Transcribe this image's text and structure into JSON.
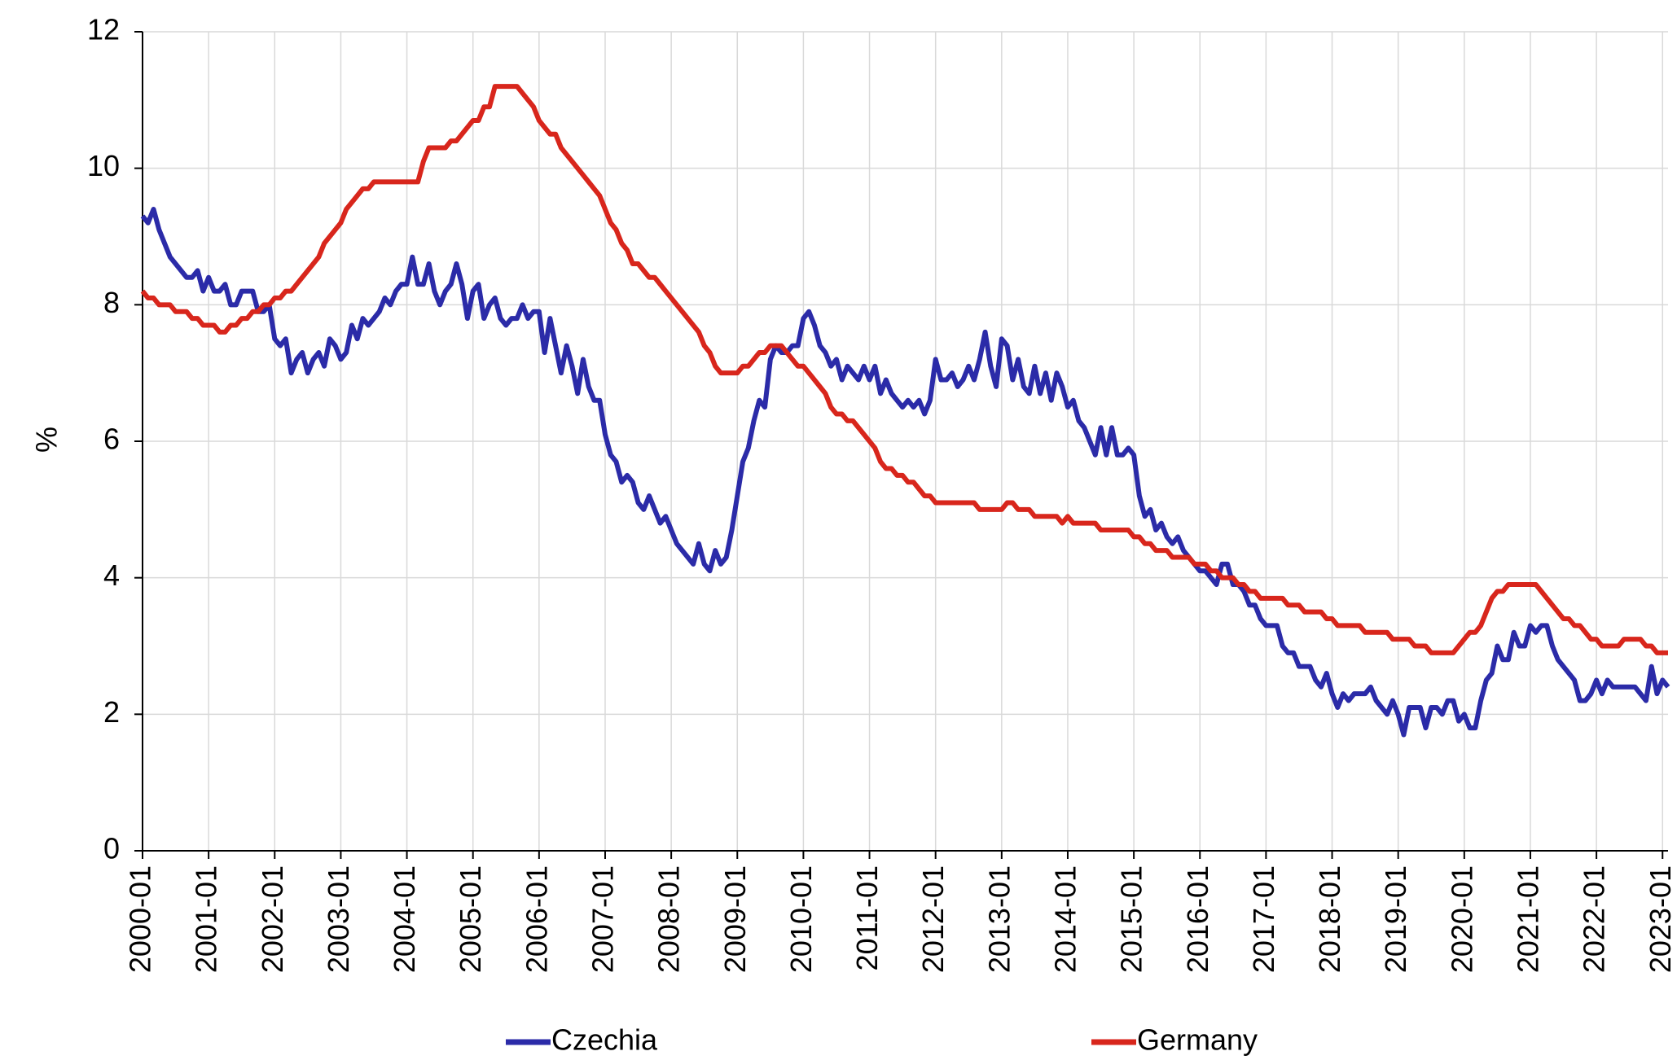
{
  "chart_data": {
    "type": "line",
    "y_label": "%",
    "ylim": [
      0,
      12
    ],
    "yticks": [
      0,
      2,
      4,
      6,
      8,
      10,
      12
    ],
    "grid": true,
    "legend": "bottom",
    "categories": [
      "2000-01",
      null,
      null,
      null,
      null,
      null,
      null,
      null,
      null,
      null,
      null,
      null,
      "2001-01",
      null,
      null,
      null,
      null,
      null,
      null,
      null,
      null,
      null,
      null,
      null,
      "2002-01",
      null,
      null,
      null,
      null,
      null,
      null,
      null,
      null,
      null,
      null,
      null,
      "2003-01",
      null,
      null,
      null,
      null,
      null,
      null,
      null,
      null,
      null,
      null,
      null,
      "2004-01",
      null,
      null,
      null,
      null,
      null,
      null,
      null,
      null,
      null,
      null,
      null,
      "2005-01",
      null,
      null,
      null,
      null,
      null,
      null,
      null,
      null,
      null,
      null,
      null,
      "2006-01",
      null,
      null,
      null,
      null,
      null,
      null,
      null,
      null,
      null,
      null,
      null,
      "2007-01",
      null,
      null,
      null,
      null,
      null,
      null,
      null,
      null,
      null,
      null,
      null,
      "2008-01",
      null,
      null,
      null,
      null,
      null,
      null,
      null,
      null,
      null,
      null,
      null,
      "2009-01",
      null,
      null,
      null,
      null,
      null,
      null,
      null,
      null,
      null,
      null,
      null,
      "2010-01",
      null,
      null,
      null,
      null,
      null,
      null,
      null,
      null,
      null,
      null,
      null,
      "2011-01",
      null,
      null,
      null,
      null,
      null,
      null,
      null,
      null,
      null,
      null,
      null,
      "2012-01",
      null,
      null,
      null,
      null,
      null,
      null,
      null,
      null,
      null,
      null,
      null,
      "2013-01",
      null,
      null,
      null,
      null,
      null,
      null,
      null,
      null,
      null,
      null,
      null,
      "2014-01",
      null,
      null,
      null,
      null,
      null,
      null,
      null,
      null,
      null,
      null,
      null,
      "2015-01",
      null,
      null,
      null,
      null,
      null,
      null,
      null,
      null,
      null,
      null,
      null,
      "2016-01",
      null,
      null,
      null,
      null,
      null,
      null,
      null,
      null,
      null,
      null,
      null,
      "2017-01",
      null,
      null,
      null,
      null,
      null,
      null,
      null,
      null,
      null,
      null,
      null,
      "2018-01",
      null,
      null,
      null,
      null,
      null,
      null,
      null,
      null,
      null,
      null,
      null,
      "2019-01",
      null,
      null,
      null,
      null,
      null,
      null,
      null,
      null,
      null,
      null,
      null,
      "2020-01",
      null,
      null,
      null,
      null,
      null,
      null,
      null,
      null,
      null,
      null,
      null,
      "2021-01",
      null,
      null,
      null,
      null,
      null,
      null,
      null,
      null,
      null,
      null,
      null,
      "2022-01",
      null,
      null,
      null,
      null,
      null,
      null,
      null,
      null,
      null,
      null,
      null,
      "2023-01",
      null
    ],
    "series": [
      {
        "name": "Czechia",
        "color": "#2b2ba8",
        "values": [
          9.3,
          9.2,
          9.4,
          9.1,
          8.9,
          8.7,
          8.6,
          8.5,
          8.4,
          8.4,
          8.5,
          8.2,
          8.4,
          8.2,
          8.2,
          8.3,
          8.0,
          8.0,
          8.2,
          8.2,
          8.2,
          7.9,
          7.9,
          8.0,
          7.5,
          7.4,
          7.5,
          7.0,
          7.2,
          7.3,
          7.0,
          7.2,
          7.3,
          7.1,
          7.5,
          7.4,
          7.2,
          7.3,
          7.7,
          7.5,
          7.8,
          7.7,
          7.8,
          7.9,
          8.1,
          8.0,
          8.2,
          8.3,
          8.3,
          8.7,
          8.3,
          8.3,
          8.6,
          8.2,
          8.0,
          8.2,
          8.3,
          8.6,
          8.3,
          7.8,
          8.2,
          8.3,
          7.8,
          8.0,
          8.1,
          7.8,
          7.7,
          7.8,
          7.8,
          8.0,
          7.8,
          7.9,
          7.9,
          7.3,
          7.8,
          7.4,
          7.0,
          7.4,
          7.1,
          6.7,
          7.2,
          6.8,
          6.6,
          6.6,
          6.1,
          5.8,
          5.7,
          5.4,
          5.5,
          5.4,
          5.1,
          5.0,
          5.2,
          5.0,
          4.8,
          4.9,
          4.7,
          4.5,
          4.4,
          4.3,
          4.2,
          4.5,
          4.2,
          4.1,
          4.4,
          4.2,
          4.3,
          4.7,
          5.2,
          5.7,
          5.9,
          6.3,
          6.6,
          6.5,
          7.2,
          7.4,
          7.3,
          7.3,
          7.4,
          7.4,
          7.8,
          7.9,
          7.7,
          7.4,
          7.3,
          7.1,
          7.2,
          6.9,
          7.1,
          7.0,
          6.9,
          7.1,
          6.9,
          7.1,
          6.7,
          6.9,
          6.7,
          6.6,
          6.5,
          6.6,
          6.5,
          6.6,
          6.4,
          6.6,
          7.2,
          6.9,
          6.9,
          7.0,
          6.8,
          6.9,
          7.1,
          6.9,
          7.2,
          7.6,
          7.1,
          6.8,
          7.5,
          7.4,
          6.9,
          7.2,
          6.8,
          6.7,
          7.1,
          6.7,
          7.0,
          6.6,
          7.0,
          6.8,
          6.5,
          6.6,
          6.3,
          6.2,
          6.0,
          5.8,
          6.2,
          5.8,
          6.2,
          5.8,
          5.8,
          5.9,
          5.8,
          5.2,
          4.9,
          5.0,
          4.7,
          4.8,
          4.6,
          4.5,
          4.6,
          4.4,
          4.3,
          4.2,
          4.1,
          4.1,
          4.0,
          3.9,
          4.2,
          4.2,
          3.9,
          3.9,
          3.8,
          3.6,
          3.6,
          3.4,
          3.3,
          3.3,
          3.3,
          3.0,
          2.9,
          2.9,
          2.7,
          2.7,
          2.7,
          2.5,
          2.4,
          2.6,
          2.3,
          2.1,
          2.3,
          2.2,
          2.3,
          2.3,
          2.3,
          2.4,
          2.2,
          2.1,
          2.0,
          2.2,
          2.0,
          1.7,
          2.1,
          2.1,
          2.1,
          1.8,
          2.1,
          2.1,
          2.0,
          2.2,
          2.2,
          1.9,
          2.0,
          1.8,
          1.8,
          2.2,
          2.5,
          2.6,
          3.0,
          2.8,
          2.8,
          3.2,
          3.0,
          3.0,
          3.3,
          3.2,
          3.3,
          3.3,
          3.0,
          2.8,
          2.7,
          2.6,
          2.5,
          2.2,
          2.2,
          2.3,
          2.5,
          2.3,
          2.5,
          2.4,
          2.4,
          2.4,
          2.4,
          2.4,
          2.3,
          2.2,
          2.7,
          2.3,
          2.5,
          2.4
        ]
      },
      {
        "name": "Germany",
        "color": "#d8261c",
        "values": [
          8.2,
          8.1,
          8.1,
          8.0,
          8.0,
          8.0,
          7.9,
          7.9,
          7.9,
          7.8,
          7.8,
          7.7,
          7.7,
          7.7,
          7.6,
          7.6,
          7.7,
          7.7,
          7.8,
          7.8,
          7.9,
          7.9,
          8.0,
          8.0,
          8.1,
          8.1,
          8.2,
          8.2,
          8.3,
          8.4,
          8.5,
          8.6,
          8.7,
          8.9,
          9.0,
          9.1,
          9.2,
          9.4,
          9.5,
          9.6,
          9.7,
          9.7,
          9.8,
          9.8,
          9.8,
          9.8,
          9.8,
          9.8,
          9.8,
          9.8,
          9.8,
          10.1,
          10.3,
          10.3,
          10.3,
          10.3,
          10.4,
          10.4,
          10.5,
          10.6,
          10.7,
          10.7,
          10.9,
          10.9,
          11.2,
          11.2,
          11.2,
          11.2,
          11.2,
          11.1,
          11.0,
          10.9,
          10.7,
          10.6,
          10.5,
          10.5,
          10.3,
          10.2,
          10.1,
          10.0,
          9.9,
          9.8,
          9.7,
          9.6,
          9.4,
          9.2,
          9.1,
          8.9,
          8.8,
          8.6,
          8.6,
          8.5,
          8.4,
          8.4,
          8.3,
          8.2,
          8.1,
          8.0,
          7.9,
          7.8,
          7.7,
          7.6,
          7.4,
          7.3,
          7.1,
          7.0,
          7.0,
          7.0,
          7.0,
          7.1,
          7.1,
          7.2,
          7.3,
          7.3,
          7.4,
          7.4,
          7.4,
          7.3,
          7.2,
          7.1,
          7.1,
          7.0,
          6.9,
          6.8,
          6.7,
          6.5,
          6.4,
          6.4,
          6.3,
          6.3,
          6.2,
          6.1,
          6.0,
          5.9,
          5.7,
          5.6,
          5.6,
          5.5,
          5.5,
          5.4,
          5.4,
          5.3,
          5.2,
          5.2,
          5.1,
          5.1,
          5.1,
          5.1,
          5.1,
          5.1,
          5.1,
          5.1,
          5.0,
          5.0,
          5.0,
          5.0,
          5.0,
          5.1,
          5.1,
          5.0,
          5.0,
          5.0,
          4.9,
          4.9,
          4.9,
          4.9,
          4.9,
          4.8,
          4.9,
          4.8,
          4.8,
          4.8,
          4.8,
          4.8,
          4.7,
          4.7,
          4.7,
          4.7,
          4.7,
          4.7,
          4.6,
          4.6,
          4.5,
          4.5,
          4.4,
          4.4,
          4.4,
          4.3,
          4.3,
          4.3,
          4.3,
          4.2,
          4.2,
          4.2,
          4.1,
          4.1,
          4.0,
          4.0,
          4.0,
          3.9,
          3.9,
          3.8,
          3.8,
          3.7,
          3.7,
          3.7,
          3.7,
          3.7,
          3.6,
          3.6,
          3.6,
          3.5,
          3.5,
          3.5,
          3.5,
          3.4,
          3.4,
          3.3,
          3.3,
          3.3,
          3.3,
          3.3,
          3.2,
          3.2,
          3.2,
          3.2,
          3.2,
          3.1,
          3.1,
          3.1,
          3.1,
          3.0,
          3.0,
          3.0,
          2.9,
          2.9,
          2.9,
          2.9,
          2.9,
          3.0,
          3.1,
          3.2,
          3.2,
          3.3,
          3.5,
          3.7,
          3.8,
          3.8,
          3.9,
          3.9,
          3.9,
          3.9,
          3.9,
          3.9,
          3.8,
          3.7,
          3.6,
          3.5,
          3.4,
          3.4,
          3.3,
          3.3,
          3.2,
          3.1,
          3.1,
          3.0,
          3.0,
          3.0,
          3.0,
          3.1,
          3.1,
          3.1,
          3.1,
          3.0,
          3.0,
          2.9,
          2.9,
          2.9
        ]
      }
    ]
  }
}
